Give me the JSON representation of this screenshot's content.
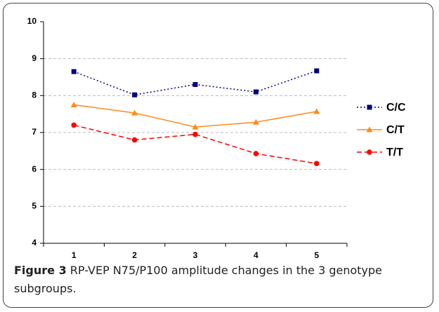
{
  "chart_data": {
    "type": "line",
    "categories": [
      1,
      2,
      3,
      4,
      5
    ],
    "series": [
      {
        "name": "C/C",
        "color": "#000080",
        "dash": "dotted",
        "marker": "square",
        "values": [
          8.65,
          8.02,
          8.3,
          8.1,
          8.67
        ]
      },
      {
        "name": "C/T",
        "color": "#ff8a1c",
        "dash": "solid",
        "marker": "triangle",
        "values": [
          7.75,
          7.53,
          7.15,
          7.28,
          7.57
        ]
      },
      {
        "name": "T/T",
        "color": "#ff0000",
        "dash": "dashed",
        "marker": "circle",
        "values": [
          7.2,
          6.8,
          6.95,
          6.43,
          6.16
        ]
      }
    ],
    "ylim": [
      4,
      10
    ],
    "yticks": [
      4,
      5,
      6,
      7,
      8,
      9,
      10
    ],
    "grid": true,
    "legend": "right"
  },
  "caption_label": "Figure 3",
  "caption": "RP-VEP N75/P100 amplitude changes in the 3 genotype subgroups."
}
